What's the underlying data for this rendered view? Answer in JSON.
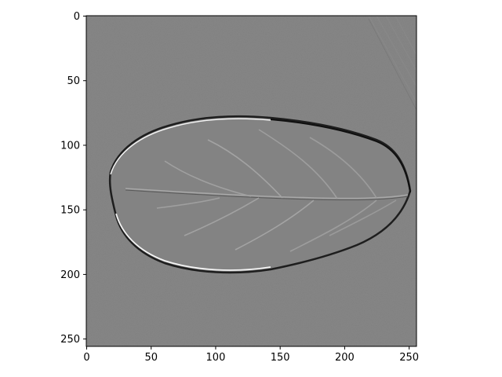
{
  "figure": {
    "type": "image",
    "description_colors": {
      "background": "#ffffff",
      "image_gray": "#808080",
      "edge_dark": "#1a1a1a",
      "edge_light": "#f2f2f2"
    }
  },
  "axes": {
    "xlim": [
      0,
      256
    ],
    "ylim": [
      256,
      0
    ],
    "x_ticks": [
      {
        "value": 0,
        "label": "0"
      },
      {
        "value": 50,
        "label": "50"
      },
      {
        "value": 100,
        "label": "100"
      },
      {
        "value": 150,
        "label": "150"
      },
      {
        "value": 200,
        "label": "200"
      },
      {
        "value": 250,
        "label": "250"
      }
    ],
    "y_ticks": [
      {
        "value": 0,
        "label": "0"
      },
      {
        "value": 50,
        "label": "50"
      },
      {
        "value": 100,
        "label": "100"
      },
      {
        "value": 150,
        "label": "150"
      },
      {
        "value": 200,
        "label": "200"
      },
      {
        "value": 250,
        "label": "250"
      }
    ]
  }
}
